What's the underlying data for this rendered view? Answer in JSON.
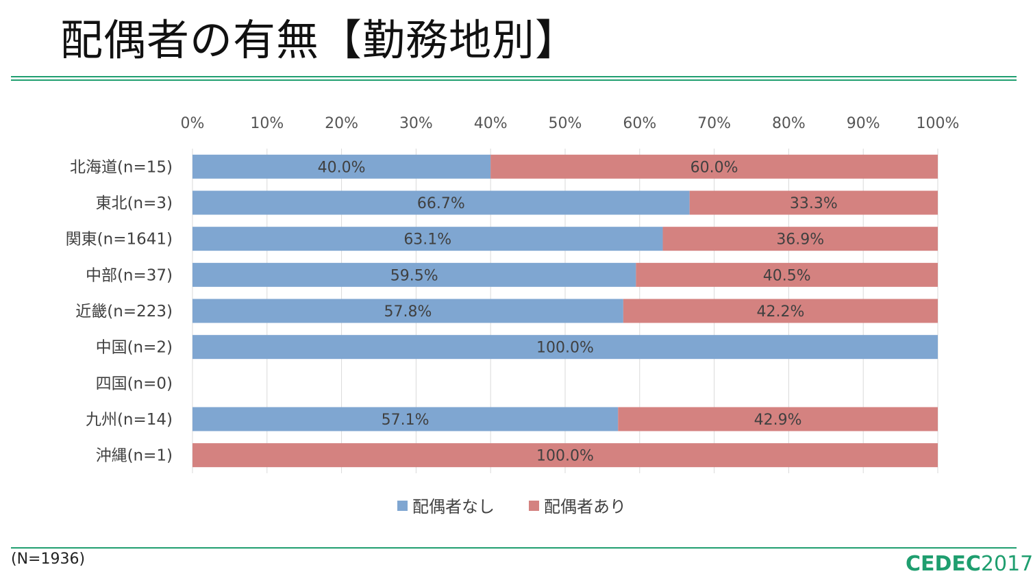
{
  "slide": {
    "title": "配偶者の有無【勤務地別】",
    "footnote": "(N=1936)",
    "logo_main": "CEDEC",
    "logo_year": "2017",
    "accent_color": "#1f9e6f"
  },
  "chart_data": {
    "type": "bar",
    "orientation": "horizontal",
    "stacked": "percent",
    "categories": [
      "北海道(n=15)",
      "東北(n=3)",
      "関東(n=1641)",
      "中部(n=37)",
      "近畿(n=223)",
      "中国(n=2)",
      "四国(n=0)",
      "九州(n=14)",
      "沖縄(n=1)"
    ],
    "series": [
      {
        "name": "配偶者なし",
        "color": "#7fa6d1",
        "values": [
          40.0,
          66.7,
          63.1,
          59.5,
          57.8,
          100.0,
          null,
          57.1,
          0
        ],
        "labels": [
          "40.0%",
          "66.7%",
          "63.1%",
          "59.5%",
          "57.8%",
          "100.0%",
          "",
          "57.1%",
          ""
        ]
      },
      {
        "name": "配偶者あり",
        "color": "#d48280",
        "values": [
          60.0,
          33.3,
          36.9,
          40.5,
          42.2,
          0,
          null,
          42.9,
          100.0
        ],
        "labels": [
          "60.0%",
          "33.3%",
          "36.9%",
          "40.5%",
          "42.2%",
          "",
          "",
          "42.9%",
          "100.0%"
        ]
      }
    ],
    "xlim": [
      0,
      100
    ],
    "x_ticks": [
      "0%",
      "10%",
      "20%",
      "30%",
      "40%",
      "50%",
      "60%",
      "70%",
      "80%",
      "90%",
      "100%"
    ],
    "axis_position": "top",
    "grid": true,
    "legend_position": "bottom"
  }
}
